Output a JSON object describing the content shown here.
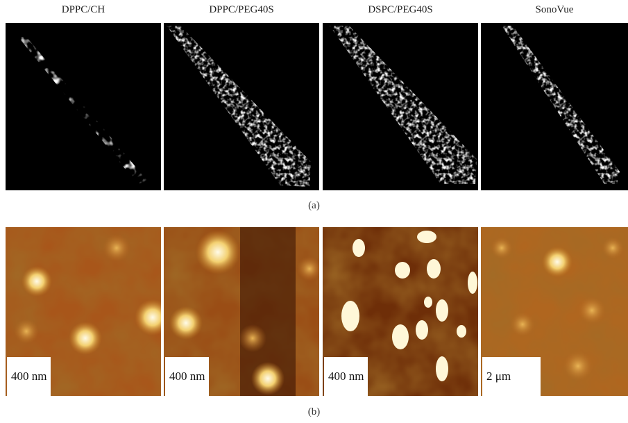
{
  "figure": {
    "row_a": {
      "titles": [
        "DPPC/CH",
        "DPPC/PEG40S",
        "DSPC/PEG40S",
        "SonoVue"
      ],
      "label": "(a)"
    },
    "row_b": {
      "scale_labels": [
        "400 nm",
        "400 nm",
        "400 nm",
        "2 μm"
      ],
      "label": "(b)"
    }
  }
}
